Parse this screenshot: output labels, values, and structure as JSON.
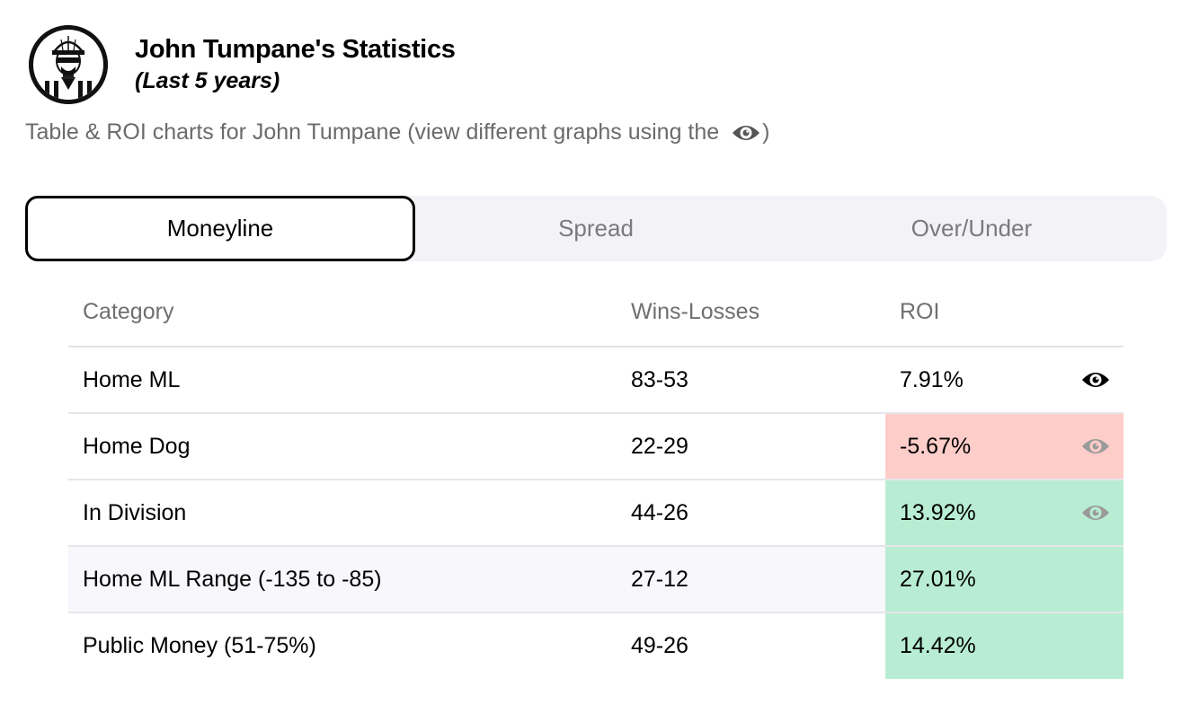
{
  "header": {
    "title": "John Tumpane's Statistics",
    "subtitle": "(Last 5 years)",
    "avatar_icon": "referee-avatar-icon"
  },
  "description": {
    "text": "Table & ROI charts for John Tumpane (view different graphs using the",
    "closing": ")",
    "icon": "eye-icon"
  },
  "tabs": [
    {
      "label": "Moneyline",
      "active": true
    },
    {
      "label": "Spread",
      "active": false
    },
    {
      "label": "Over/Under",
      "active": false
    }
  ],
  "table": {
    "columns": [
      "Category",
      "Wins-Losses",
      "ROI"
    ],
    "rows": [
      {
        "category": "Home ML",
        "record": "83-53",
        "roi": "7.91%",
        "status": "neutral",
        "eye": "active"
      },
      {
        "category": "Home Dog",
        "record": "22-29",
        "roi": "-5.67%",
        "status": "negative",
        "eye": "inactive"
      },
      {
        "category": "In Division",
        "record": "44-26",
        "roi": "13.92%",
        "status": "positive",
        "eye": "inactive"
      },
      {
        "category": "Home ML Range (-135 to -85)",
        "record": "27-12",
        "roi": "27.01%",
        "status": "positive",
        "eye": "none"
      },
      {
        "category": "Public Money (51-75%)",
        "record": "49-26",
        "roi": "14.42%",
        "status": "positive",
        "eye": "none"
      }
    ]
  },
  "colors": {
    "negative_bg": "#fdcdca",
    "positive_bg": "#b8edd3",
    "tab_bg": "#f3f2f7",
    "eye_active": "#000000",
    "eye_inactive": "#9a9a9a"
  }
}
